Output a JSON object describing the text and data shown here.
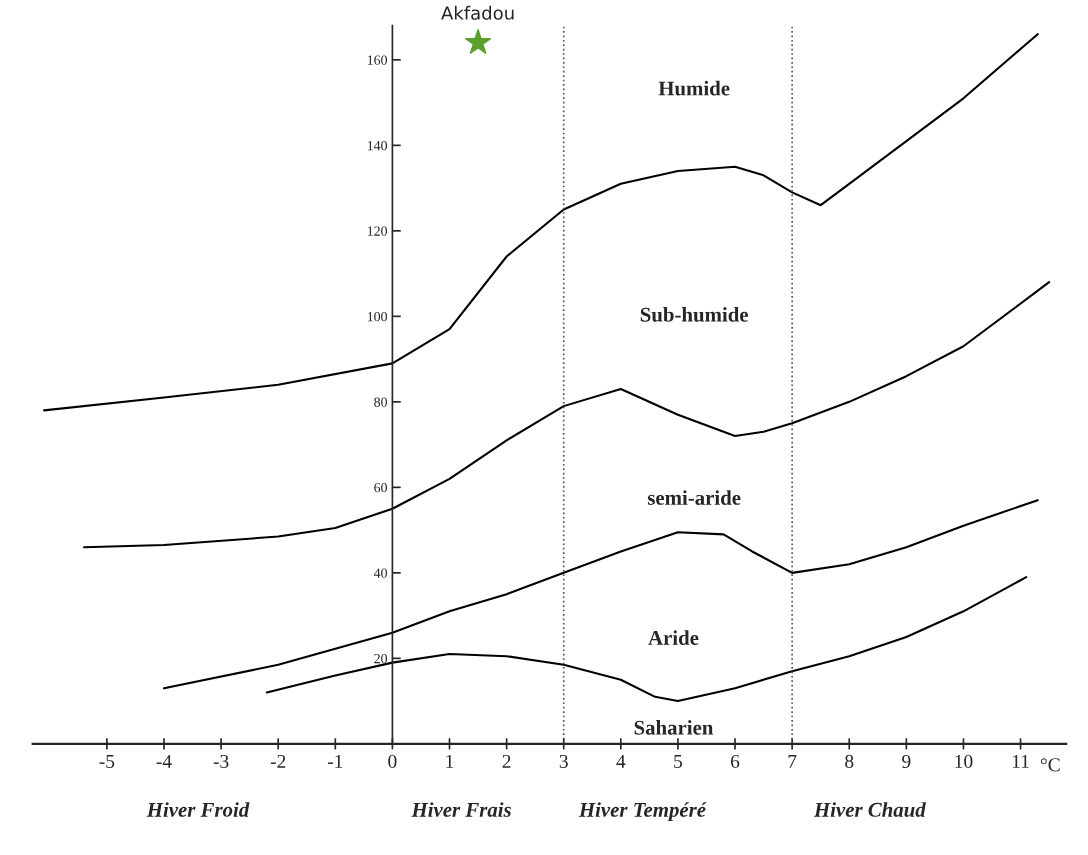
{
  "chart_data": {
    "type": "line",
    "xlabel": "°C",
    "xlim": [
      -6.3,
      11.8
    ],
    "ylim": [
      0,
      168
    ],
    "xticks": [
      -5,
      -4,
      -3,
      -2,
      -1,
      0,
      1,
      2,
      3,
      4,
      5,
      6,
      7,
      8,
      9,
      10,
      11
    ],
    "yticks": [
      20,
      40,
      60,
      80,
      100,
      120,
      140,
      160
    ],
    "grid": false,
    "legend": false,
    "marker": "none",
    "line_style": "solid",
    "series": [
      {
        "color": "#000000",
        "x": [
          -6.1,
          -4,
          -2,
          0,
          1,
          2,
          3,
          4,
          5,
          6,
          6.5,
          7,
          7.5,
          8,
          9,
          10,
          11.3
        ],
        "values": [
          78,
          81,
          84,
          89,
          97,
          114,
          125,
          131,
          134,
          135,
          133,
          129,
          126,
          131,
          141,
          151,
          166
        ]
      },
      {
        "color": "#000000",
        "x": [
          -5.4,
          -4,
          -2,
          -1,
          0,
          1,
          2,
          3,
          4,
          5,
          6,
          6.5,
          7,
          8,
          9,
          10,
          11.5
        ],
        "values": [
          46,
          46.5,
          48.5,
          50.5,
          55,
          62,
          71,
          79,
          83,
          77,
          72,
          73,
          75,
          80,
          86,
          93,
          108
        ]
      },
      {
        "color": "#000000",
        "x": [
          -4,
          -2,
          0,
          1,
          2,
          3,
          4,
          5,
          5.8,
          6.3,
          7,
          8,
          9,
          10,
          11.3
        ],
        "values": [
          13,
          18.5,
          26,
          31,
          35,
          40,
          45,
          49.5,
          49,
          45,
          40,
          42,
          46,
          51,
          57
        ]
      },
      {
        "color": "#000000",
        "x": [
          -2.2,
          -1,
          0,
          1,
          2,
          3,
          4,
          4.6,
          5,
          6,
          7,
          8,
          9,
          10,
          11.1
        ],
        "values": [
          12,
          16,
          19,
          21,
          20.5,
          18.5,
          15,
          11,
          10,
          13,
          17,
          20.5,
          25,
          31,
          39
        ]
      },
      {
        "type": "scatter",
        "name": "Akfadou",
        "color": "#5aa02c",
        "marker": "star",
        "x": [
          1.5
        ],
        "values": [
          164
        ]
      }
    ],
    "ref_lines": [
      {
        "axis": "x",
        "value": 3,
        "line_style": "dotted",
        "color": "#555555"
      },
      {
        "axis": "x",
        "value": 7,
        "line_style": "dotted",
        "color": "#555555"
      }
    ],
    "annotations": [
      "Humide",
      "Sub-humide",
      "semi-aride",
      "Aride",
      "Saharien",
      "Hiver Froid",
      "Hiver Frais",
      "Hiver Tempéré",
      "Hiver Chaud"
    ]
  }
}
